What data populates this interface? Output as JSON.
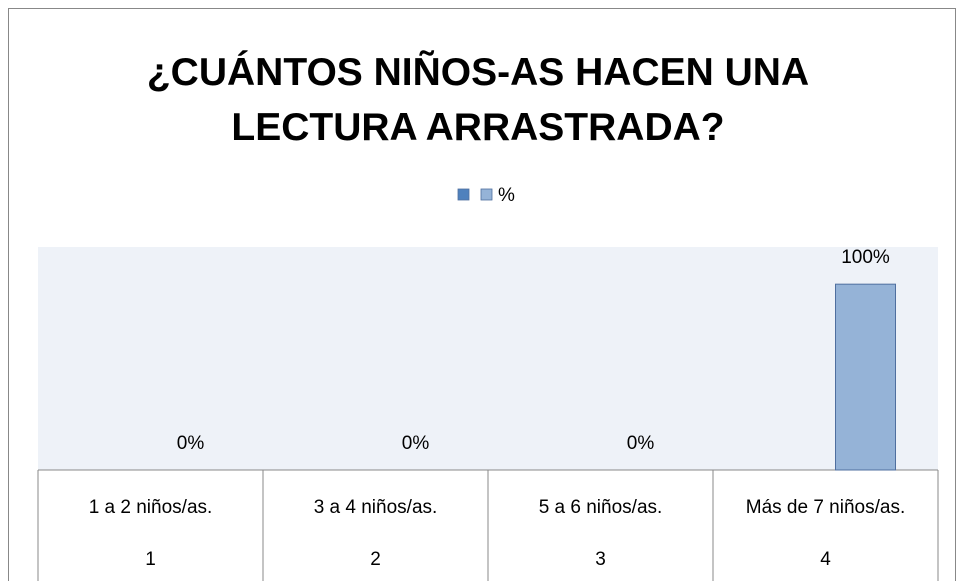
{
  "chart_data": {
    "type": "bar",
    "title": "¿CUÁNTOS NIÑOS-AS HACEN UNA LECTURA ARRASTRADA?",
    "categories": [
      "1 a 2 niños/as.",
      "3 a 4 niños/as.",
      "5 a 6 niños/as.",
      "Más de 7 niños/as."
    ],
    "category_numbers": [
      "1",
      "2",
      "3",
      "4"
    ],
    "series": [
      {
        "color": "#4f81bd",
        "values": [
          null,
          null,
          null,
          null
        ]
      },
      {
        "name": "%",
        "color": "#95b3d7",
        "values": [
          0,
          0,
          0,
          100
        ],
        "value_labels": [
          "0%",
          "0%",
          "0%",
          "100%"
        ]
      }
    ],
    "ylim": [
      0,
      120
    ],
    "legend": "top"
  }
}
